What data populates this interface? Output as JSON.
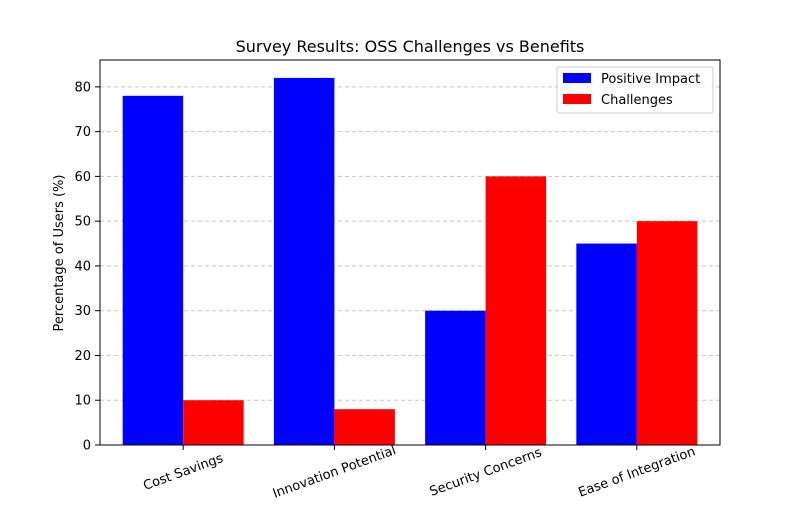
{
  "chart_data": {
    "type": "bar",
    "title": "Survey Results: OSS Challenges vs Benefits",
    "xlabel": "",
    "ylabel": "Percentage of Users (%)",
    "categories": [
      "Cost Savings",
      "Innovation Potential",
      "Security Concerns",
      "Ease of Integration"
    ],
    "series": [
      {
        "name": "Positive Impact",
        "values": [
          78,
          82,
          30,
          45
        ],
        "color": "#0000ff"
      },
      {
        "name": "Challenges",
        "values": [
          10,
          8,
          60,
          50
        ],
        "color": "#ff0000"
      }
    ],
    "ylim": [
      0,
      86
    ],
    "yticks": [
      0,
      10,
      20,
      30,
      40,
      50,
      60,
      70,
      80
    ],
    "grid": "y-dashed",
    "legend_position": "top-right"
  }
}
